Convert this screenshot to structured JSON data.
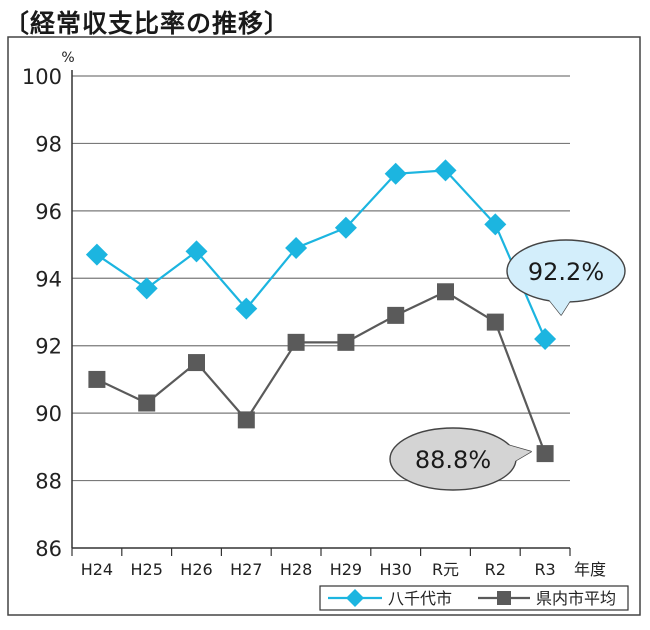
{
  "title": "〔経常収支比率の推移〕",
  "colors": {
    "series1": "#1cb5e0",
    "series2": "#5a5a5a",
    "grid": "#7a7a7a",
    "frame": "#444444",
    "callout1_fill": "#d3eefb",
    "callout2_fill": "#d4d4d4"
  },
  "chart_data": {
    "type": "line",
    "title": "〔経常収支比率の推移〕",
    "ylabel": "%",
    "xlabel": "年度",
    "ylim": [
      86,
      100
    ],
    "yticks": [
      86,
      88,
      90,
      92,
      94,
      96,
      98,
      100
    ],
    "categories": [
      "H24",
      "H25",
      "H26",
      "H27",
      "H28",
      "H29",
      "H30",
      "R元",
      "R2",
      "R3"
    ],
    "grid": true,
    "legend_position": "bottom-right",
    "series": [
      {
        "name": "八千代市",
        "marker": "diamond",
        "values": [
          94.7,
          93.7,
          94.8,
          93.1,
          94.9,
          95.5,
          97.1,
          97.2,
          95.6,
          92.2
        ]
      },
      {
        "name": "県内市平均",
        "marker": "square",
        "values": [
          91.0,
          90.3,
          91.5,
          89.8,
          92.1,
          92.1,
          92.9,
          93.6,
          92.7,
          88.8
        ]
      }
    ],
    "annotations": [
      {
        "text": "92.2%",
        "series": 0,
        "category": "R3"
      },
      {
        "text": "88.8%",
        "series": 1,
        "category": "R3"
      }
    ]
  }
}
